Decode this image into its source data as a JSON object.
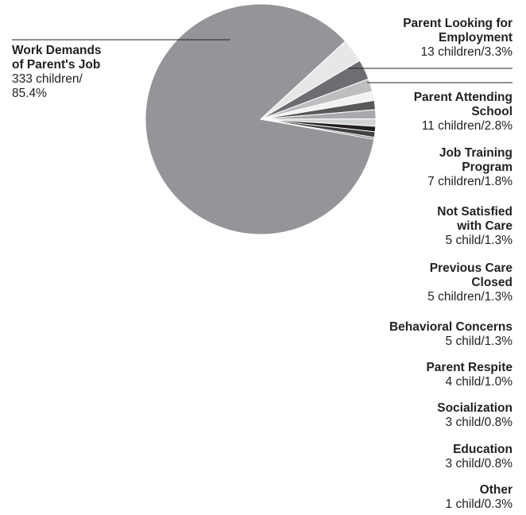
{
  "chart_data": {
    "type": "pie",
    "title": "",
    "slices": [
      {
        "name": "Work Demands of Parent's Job",
        "name_lines": [
          "Work Demands",
          "of Parent's Job"
        ],
        "value_lines": [
          "333 children/",
          "85.4%"
        ],
        "count": 333,
        "percent": 85.4,
        "color": "#939598"
      },
      {
        "name": "Parent Looking for Employment",
        "name_lines": [
          "Parent Looking for",
          "Employment"
        ],
        "value_lines": [
          "13 children/3.3%"
        ],
        "count": 13,
        "percent": 3.3,
        "color": "#e6e7e8"
      },
      {
        "name": "Parent Attending School",
        "name_lines": [
          "Parent Attending",
          "School"
        ],
        "value_lines": [
          "11 children/2.8%"
        ],
        "count": 11,
        "percent": 2.8,
        "color": "#6d6e71"
      },
      {
        "name": "Job Training Program",
        "name_lines": [
          "Job Training",
          "Program"
        ],
        "value_lines": [
          "7 children/1.8%"
        ],
        "count": 7,
        "percent": 1.8,
        "color": "#bcbec0"
      },
      {
        "name": "Not Satisfied with Care",
        "name_lines": [
          "Not Satisfied",
          "with Care"
        ],
        "value_lines": [
          "5 child/1.3%"
        ],
        "count": 5,
        "percent": 1.3,
        "color": "#f1f2f2"
      },
      {
        "name": "Previous Care Closed",
        "name_lines": [
          "Previous Care",
          "Closed"
        ],
        "value_lines": [
          "5 children/1.3%"
        ],
        "count": 5,
        "percent": 1.3,
        "color": "#58595b"
      },
      {
        "name": "Behavioral Concerns",
        "name_lines": [
          "Behavioral Concerns"
        ],
        "value_lines": [
          "5 child/1.3%"
        ],
        "count": 5,
        "percent": 1.3,
        "color": "#a7a9ac"
      },
      {
        "name": "Parent Respite",
        "name_lines": [
          "Parent Respite"
        ],
        "value_lines": [
          "4 child/1.0%"
        ],
        "count": 4,
        "percent": 1.0,
        "color": "#d1d3d4"
      },
      {
        "name": "Socialization",
        "name_lines": [
          "Socialization"
        ],
        "value_lines": [
          "3 child/0.8%"
        ],
        "count": 3,
        "percent": 0.8,
        "color": "#231f20"
      },
      {
        "name": "Education",
        "name_lines": [
          "Education"
        ],
        "value_lines": [
          "3 child/0.8%"
        ],
        "count": 3,
        "percent": 0.8,
        "color": "#414042"
      },
      {
        "name": "Other",
        "name_lines": [
          "Other"
        ],
        "value_lines": [
          "1 child/0.3%"
        ],
        "count": 1,
        "percent": 0.3,
        "color": "#808285"
      }
    ]
  }
}
